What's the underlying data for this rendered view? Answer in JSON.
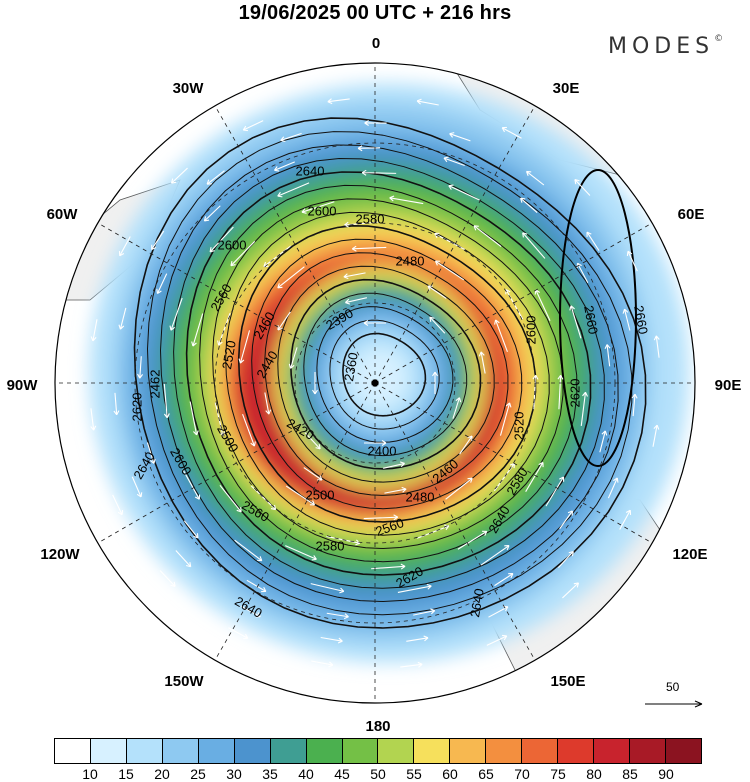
{
  "header": {
    "title": "19/06/2025  00 UTC  + 216 hrs",
    "brand": "MODES",
    "brand_mark": "©"
  },
  "map": {
    "projection": "south polar stereographic",
    "longitude_labels": [
      {
        "key": "0",
        "text": "0"
      },
      {
        "key": "30E",
        "text": "30E"
      },
      {
        "key": "60E",
        "text": "60E"
      },
      {
        "key": "90E",
        "text": "90E"
      },
      {
        "key": "120E",
        "text": "120E"
      },
      {
        "key": "150E",
        "text": "150E"
      },
      {
        "key": "180",
        "text": "180"
      },
      {
        "key": "150W",
        "text": "150W"
      },
      {
        "key": "120W",
        "text": "120W"
      },
      {
        "key": "90W",
        "text": "90W"
      },
      {
        "key": "60W",
        "text": "60W"
      },
      {
        "key": "30W",
        "text": "30W"
      }
    ],
    "contour_labels": [
      "2640",
      "2600",
      "2580",
      "2480",
      "2460",
      "2390",
      "2360",
      "2600",
      "2560",
      "2462",
      "2520",
      "2440",
      "2620",
      "2400",
      "2420",
      "2500",
      "2460",
      "2520",
      "2600",
      "2620",
      "2580",
      "2660",
      "2660",
      "2640",
      "2500",
      "2480",
      "2560",
      "2580",
      "2620",
      "2640",
      "2640",
      "2560",
      "2600",
      "2640"
    ],
    "reference_vector": {
      "label": "50"
    }
  },
  "colorbar": {
    "colors": [
      "#ffffff",
      "#d7f1ff",
      "#b4e1fb",
      "#8ec9f1",
      "#69aee3",
      "#4c93ce",
      "#3f9e93",
      "#4bb04f",
      "#74c046",
      "#b2d450",
      "#f6e05c",
      "#f7b850",
      "#f38f3f",
      "#ec6635",
      "#dd3a2c",
      "#c8232d",
      "#a81a26",
      "#8b1320"
    ],
    "ticks": [
      "10",
      "15",
      "20",
      "25",
      "30",
      "35",
      "40",
      "45",
      "50",
      "55",
      "60",
      "65",
      "70",
      "75",
      "80",
      "85",
      "90"
    ]
  }
}
